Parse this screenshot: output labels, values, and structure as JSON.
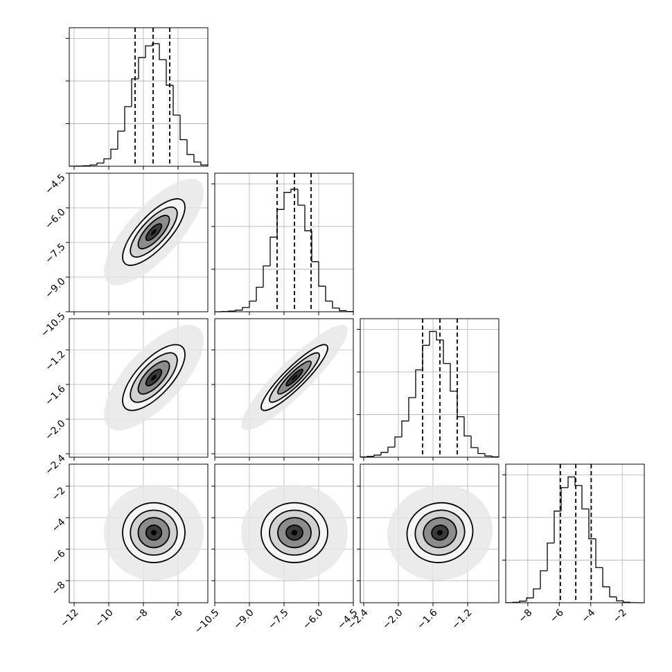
{
  "chart_data": {
    "type": "corner",
    "grid": true,
    "hist_ylim": [
      0,
      1300
    ],
    "hist_yticks": [
      400,
      800,
      1200
    ],
    "params": [
      {
        "range": [
          -12.28,
          -4.28
        ],
        "mean": -7.4,
        "sd": 0.9,
        "ticks": [
          {
            "value": -12,
            "label": "−12"
          },
          {
            "value": -10,
            "label": "−10"
          },
          {
            "value": -8,
            "label": "−8"
          },
          {
            "value": -6,
            "label": "−6"
          }
        ],
        "quantiles": [
          -8.48,
          -7.44,
          -6.48
        ],
        "bins": [
          -12.28,
          -11.88,
          -11.48,
          -11.08,
          -10.68,
          -10.28,
          -9.88,
          -9.48,
          -9.08,
          -8.68,
          -8.28,
          -7.88,
          -7.48,
          -7.08,
          -6.68,
          -6.28,
          -5.88,
          -5.48,
          -5.08,
          -4.68,
          -4.28
        ],
        "counts": [
          1,
          2,
          5,
          12,
          30,
          70,
          160,
          330,
          560,
          820,
          1020,
          1130,
          1150,
          1000,
          760,
          480,
          250,
          110,
          40,
          12
        ]
      },
      {
        "range": [
          -10.5,
          -4.5
        ],
        "mean": -7.05,
        "sd": 0.72,
        "ticks": [
          {
            "value": -10.5,
            "label": "−10.5"
          },
          {
            "value": -9,
            "label": "−9.0"
          },
          {
            "value": -7.5,
            "label": "−7.5"
          },
          {
            "value": -6,
            "label": "−6.0"
          },
          {
            "value": -4.5,
            "label": "−4.5"
          }
        ],
        "quantiles": [
          -7.8,
          -7.05,
          -6.33
        ],
        "bins": [
          -10.5,
          -10.2,
          -9.9,
          -9.6,
          -9.3,
          -9.0,
          -8.7,
          -8.4,
          -8.1,
          -7.8,
          -7.5,
          -7.2,
          -6.9,
          -6.6,
          -6.3,
          -6.0,
          -5.7,
          -5.4,
          -5.1,
          -4.8,
          -4.5
        ],
        "counts": [
          0,
          2,
          6,
          15,
          40,
          100,
          230,
          430,
          700,
          960,
          1120,
          1150,
          1000,
          760,
          470,
          240,
          100,
          35,
          10,
          2
        ]
      },
      {
        "range": [
          -2.44,
          -0.84
        ],
        "mean": -1.52,
        "sd": 0.19,
        "ticks": [
          {
            "value": -2.4,
            "label": "−2.4"
          },
          {
            "value": -2,
            "label": "−2.0"
          },
          {
            "value": -1.6,
            "label": "−1.6"
          },
          {
            "value": -1.2,
            "label": "−1.2"
          }
        ],
        "quantiles": [
          -1.72,
          -1.52,
          -1.32
        ],
        "bins": [
          -2.44,
          -2.36,
          -2.28,
          -2.2,
          -2.12,
          -2.04,
          -1.96,
          -1.88,
          -1.8,
          -1.72,
          -1.64,
          -1.56,
          -1.48,
          -1.4,
          -1.32,
          -1.24,
          -1.16,
          -1.08,
          -1.0,
          -0.92,
          -0.84
        ],
        "counts": [
          3,
          8,
          20,
          45,
          95,
          190,
          340,
          560,
          820,
          1050,
          1180,
          1100,
          880,
          620,
          380,
          200,
          90,
          35,
          12,
          4
        ]
      },
      {
        "range": [
          -9.4,
          -0.6
        ],
        "mean": -4.95,
        "sd": 0.95,
        "ticks": [
          {
            "value": -8,
            "label": "−8"
          },
          {
            "value": -6,
            "label": "−6"
          },
          {
            "value": -4,
            "label": "−4"
          },
          {
            "value": -2,
            "label": "−2"
          }
        ],
        "quantiles": [
          -5.93,
          -4.95,
          -3.97
        ],
        "bins": [
          -9.4,
          -8.96,
          -8.52,
          -8.08,
          -7.64,
          -7.2,
          -6.76,
          -6.32,
          -5.88,
          -5.44,
          -5.0,
          -4.56,
          -4.12,
          -3.68,
          -3.24,
          -2.8,
          -2.36,
          -1.92,
          -1.48,
          -1.04,
          -0.6
        ],
        "counts": [
          1,
          4,
          15,
          45,
          130,
          300,
          560,
          860,
          1080,
          1180,
          1100,
          880,
          600,
          330,
          150,
          55,
          18,
          5,
          1,
          0
        ]
      }
    ],
    "pairs": [
      {
        "x": 0,
        "y": 1,
        "correlation": 0.75
      },
      {
        "x": 0,
        "y": 2,
        "correlation": 0.7
      },
      {
        "x": 1,
        "y": 2,
        "correlation": 0.9
      },
      {
        "x": 0,
        "y": 3,
        "correlation": 0.0
      },
      {
        "x": 1,
        "y": 3,
        "correlation": 0.0
      },
      {
        "x": 2,
        "y": 3,
        "correlation": 0.05
      }
    ]
  }
}
